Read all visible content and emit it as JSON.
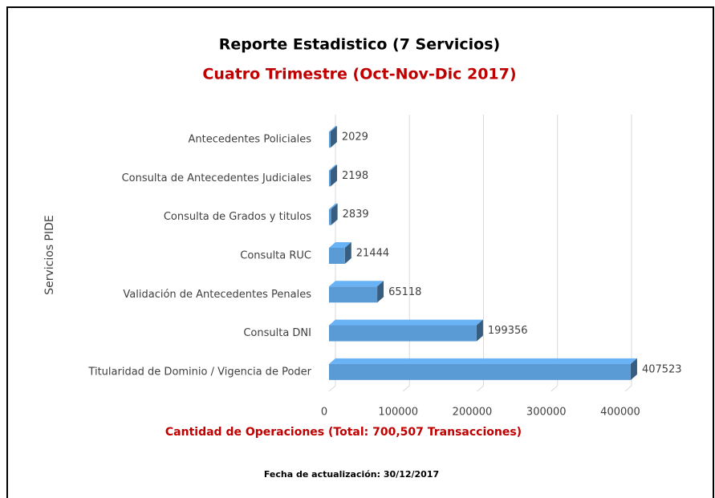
{
  "chart_data": {
    "type": "bar3d_horizontal",
    "title": "Reporte Estadistico (7 Servicios)",
    "subtitle": "Cuatro Trimestre (Oct-Nov-Dic 2017)",
    "y_label": "Servicios PIDE",
    "x_label": "Cantidad de Operaciones (Total: 700,507 Transacciones)",
    "footer": "Fecha de actualización: 30/12/2017",
    "categories": [
      "Antecedentes Policiales",
      "Consulta de Antecedentes Judiciales",
      "Consulta de Grados y titulos",
      "Consulta RUC",
      "Validación de Antecedentes Penales",
      "Consulta DNI",
      "Titularidad de Dominio / Vigencia de Poder"
    ],
    "values": [
      2029,
      2198,
      2839,
      21444,
      65118,
      199356,
      407523
    ],
    "color": "#5b9bd5",
    "xlim": [
      0,
      400000
    ],
    "xticks": [
      0,
      100000,
      200000,
      300000,
      400000
    ],
    "grid": true
  }
}
